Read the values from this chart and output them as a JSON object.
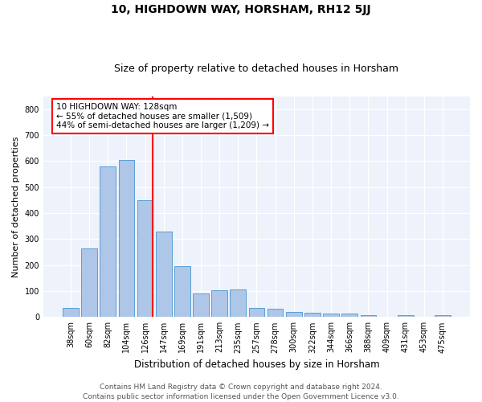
{
  "title1": "10, HIGHDOWN WAY, HORSHAM, RH12 5JJ",
  "title2": "Size of property relative to detached houses in Horsham",
  "xlabel": "Distribution of detached houses by size in Horsham",
  "ylabel": "Number of detached properties",
  "categories": [
    "38sqm",
    "60sqm",
    "82sqm",
    "104sqm",
    "126sqm",
    "147sqm",
    "169sqm",
    "191sqm",
    "213sqm",
    "235sqm",
    "257sqm",
    "278sqm",
    "300sqm",
    "322sqm",
    "344sqm",
    "366sqm",
    "388sqm",
    "409sqm",
    "431sqm",
    "453sqm",
    "475sqm"
  ],
  "values": [
    35,
    265,
    580,
    605,
    450,
    330,
    195,
    90,
    102,
    105,
    35,
    32,
    18,
    16,
    14,
    12,
    6,
    0,
    8,
    0,
    8
  ],
  "bar_color": "#aec6e8",
  "bar_edge_color": "#5a9fd4",
  "vline_index": 4,
  "vline_color": "red",
  "annotation_text": "10 HIGHDOWN WAY: 128sqm\n← 55% of detached houses are smaller (1,509)\n44% of semi-detached houses are larger (1,209) →",
  "annotation_box_color": "white",
  "annotation_box_edge_color": "red",
  "footer1": "Contains HM Land Registry data © Crown copyright and database right 2024.",
  "footer2": "Contains public sector information licensed under the Open Government Licence v3.0.",
  "ylim": [
    0,
    850
  ],
  "yticks": [
    0,
    100,
    200,
    300,
    400,
    500,
    600,
    700,
    800
  ],
  "bg_color": "#eef2fa",
  "title1_fontsize": 10,
  "title2_fontsize": 9,
  "xlabel_fontsize": 8.5,
  "ylabel_fontsize": 8,
  "tick_fontsize": 7,
  "footer_fontsize": 6.5,
  "annotation_fontsize": 7.5
}
